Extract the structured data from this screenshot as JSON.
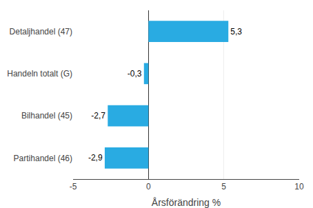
{
  "chart_data": {
    "type": "bar",
    "orientation": "horizontal",
    "categories": [
      "Partihandel (46)",
      "Bilhandel (45)",
      "Handeln totalt (G)",
      "Detaljhandel (47)"
    ],
    "values": [
      -2.9,
      -2.7,
      -0.3,
      5.3
    ],
    "value_labels": [
      "-2,9",
      "-2,7",
      "-0,3",
      "5,3"
    ],
    "data_labels": true,
    "color": "#29abe2",
    "xlabel": "Årsförändring %",
    "xlim": [
      -5,
      10
    ],
    "xticks": [
      -5,
      0,
      5,
      10
    ],
    "grid": true
  }
}
